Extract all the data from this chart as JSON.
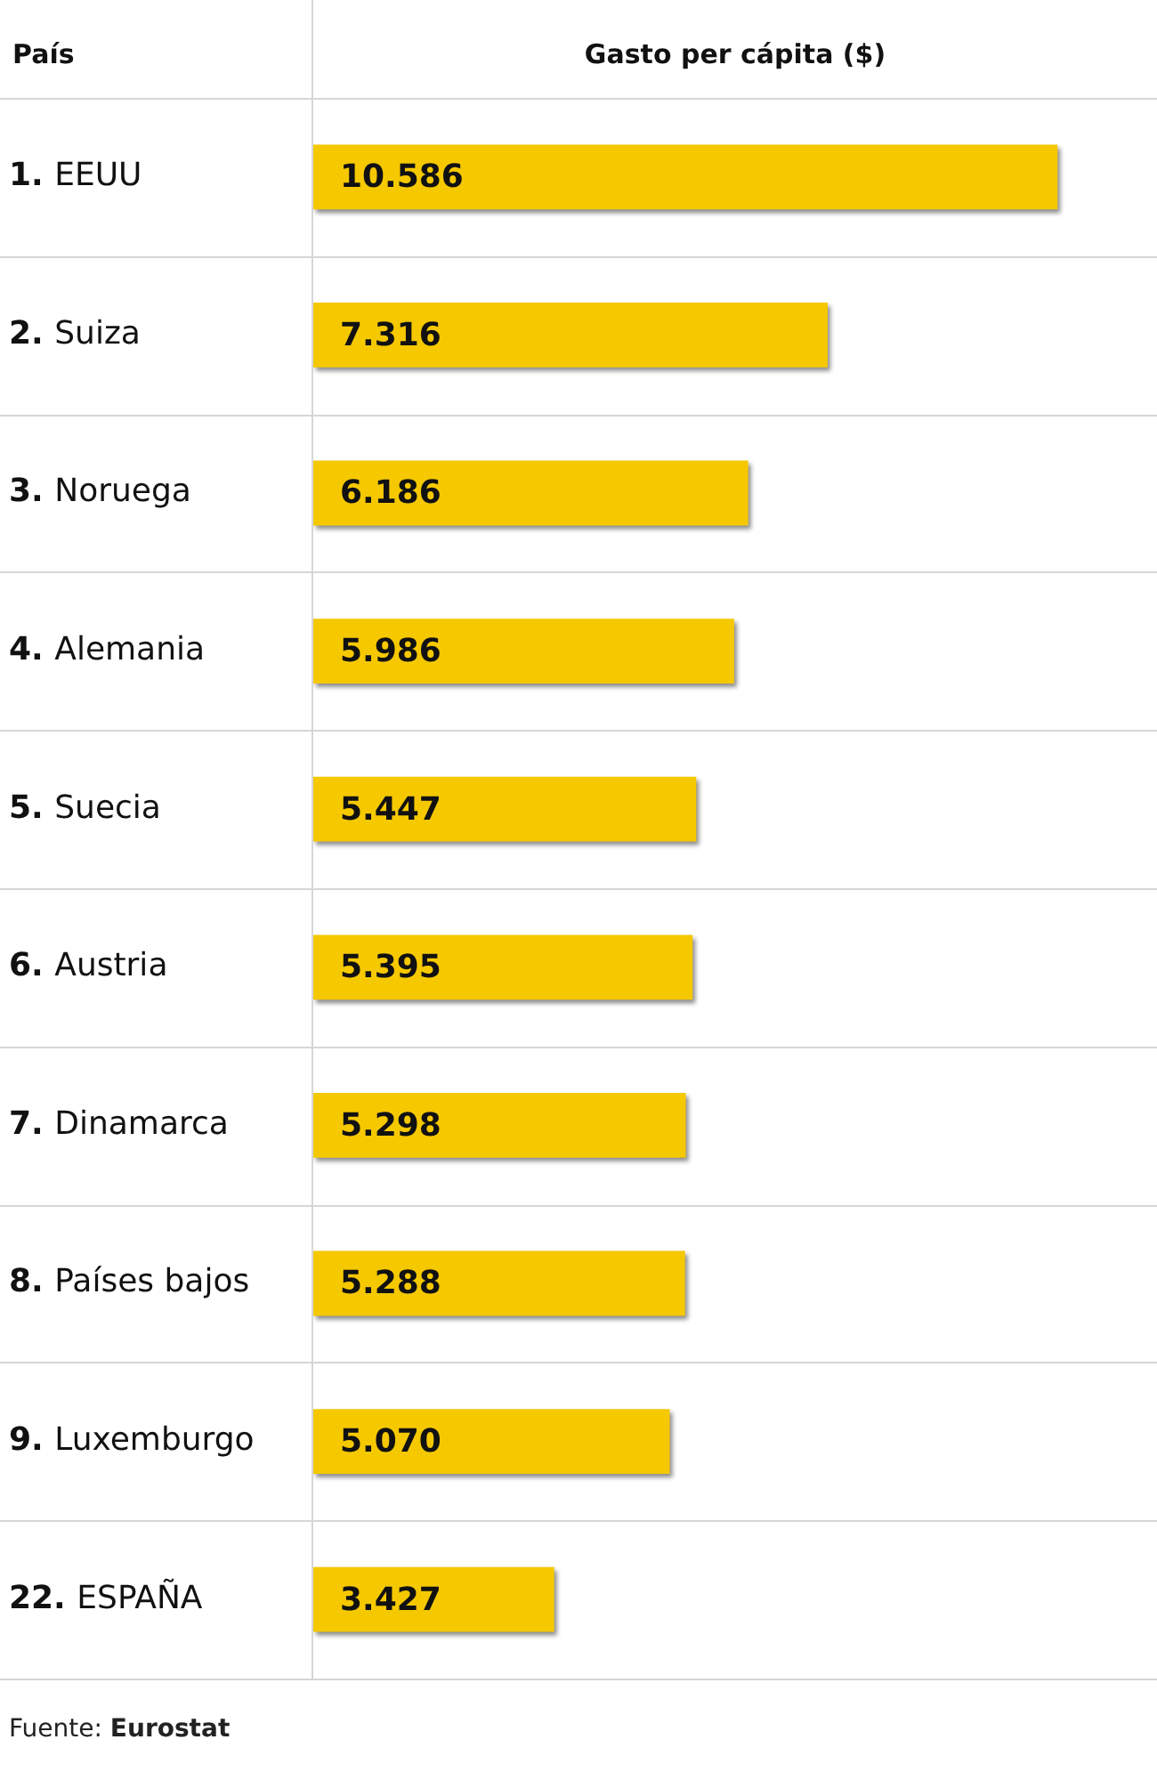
{
  "chart_data": {
    "type": "bar",
    "orientation": "horizontal",
    "xlabel": "Gasto per cápita ($)",
    "ylabel": "País",
    "categories": [
      "1. EEUU",
      "2. Suiza",
      "3. Noruega",
      "4. Alemania",
      "5. Suecia",
      "6. Austria",
      "7. Dinamarca",
      "8. Países bajos",
      "9. Luxemburgo",
      "22. ESPAÑA"
    ],
    "values": [
      10586,
      7316,
      6186,
      5986,
      5447,
      5395,
      5298,
      5288,
      5070,
      3427
    ],
    "value_labels": [
      "10.586",
      "7.316",
      "6.186",
      "5.986",
      "5.447",
      "5.395",
      "5.298",
      "5.288",
      "5.070",
      "3.427"
    ],
    "color": "#f5c800",
    "grid": "y",
    "legend": false,
    "tick_labels": "y",
    "annotations": [
      "Fuente: Eurostat"
    ]
  }
}
